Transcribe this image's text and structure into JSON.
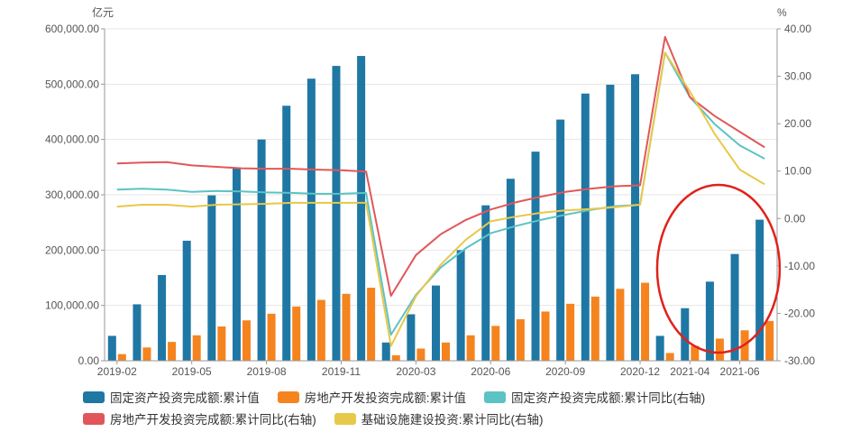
{
  "chart_data": {
    "type": "bar+line",
    "left_axis": {
      "unit": "亿元",
      "min": 0,
      "max": 600000,
      "ticks": [
        "0.00",
        "100,000.00",
        "200,000.00",
        "300,000.00",
        "400,000.00",
        "500,000.00",
        "600,000.00"
      ]
    },
    "right_axis": {
      "unit": "%",
      "min": -30,
      "max": 40,
      "ticks": [
        "-30.00",
        "-20.00",
        "-10.00",
        "0.00",
        "10.00",
        "20.00",
        "30.00",
        "40.00"
      ]
    },
    "x_labels": [
      {
        "index": 0,
        "text": "2019-02"
      },
      {
        "index": 3,
        "text": "2019-05"
      },
      {
        "index": 6,
        "text": "2019-08"
      },
      {
        "index": 9,
        "text": "2019-11"
      },
      {
        "index": 12,
        "text": "2020-03"
      },
      {
        "index": 15,
        "text": "2020-06"
      },
      {
        "index": 18,
        "text": "2020-09"
      },
      {
        "index": 21,
        "text": "2020-12"
      },
      {
        "index": 23,
        "text": "2021-04"
      },
      {
        "index": 25,
        "text": "2021-06"
      }
    ],
    "categories": [
      "2019-02",
      "2019-03",
      "2019-04",
      "2019-05",
      "2019-06",
      "2019-07",
      "2019-08",
      "2019-09",
      "2019-10",
      "2019-11",
      "2019-12",
      "2020-02",
      "2020-03",
      "2020-04",
      "2020-05",
      "2020-06",
      "2020-07",
      "2020-08",
      "2020-09",
      "2020-10",
      "2020-11",
      "2020-12",
      "2021-02",
      "2021-03",
      "2021-04",
      "2021-05",
      "2021-06"
    ],
    "bar_series": [
      {
        "name": "固定资产投资完成额:累计值",
        "color": "#1f77a4",
        "values": [
          45000,
          102000,
          155000,
          217000,
          299000,
          349000,
          400000,
          461000,
          510000,
          533000,
          551000,
          33000,
          84000,
          136000,
          200000,
          281000,
          329000,
          378000,
          436000,
          483000,
          499000,
          518000,
          45000,
          95000,
          143000,
          193000,
          255000
        ]
      },
      {
        "name": "房地产开发投资完成额:累计值",
        "color": "#f5841f",
        "values": [
          12000,
          24000,
          34000,
          46000,
          62000,
          73000,
          85000,
          98000,
          110000,
          121000,
          132000,
          10000,
          22000,
          33000,
          46000,
          63000,
          75000,
          89000,
          103000,
          116000,
          130000,
          141000,
          14000,
          27000,
          40000,
          55000,
          72000
        ]
      }
    ],
    "line_series": [
      {
        "name": "固定资产投资完成额:累计同比(右轴)",
        "color": "#5cc3c3",
        "values": [
          6.1,
          6.3,
          6.1,
          5.6,
          5.8,
          5.7,
          5.5,
          5.4,
          5.2,
          5.2,
          5.4,
          -24.5,
          -16.1,
          -10.3,
          -6.3,
          -3.1,
          -1.6,
          -0.3,
          0.8,
          1.8,
          2.6,
          2.9,
          35.0,
          25.6,
          19.9,
          15.4,
          12.6
        ]
      },
      {
        "name": "房地产开发投资完成额:累计同比(右轴)",
        "color": "#e15759",
        "values": [
          11.6,
          11.8,
          11.9,
          11.2,
          10.9,
          10.6,
          10.5,
          10.5,
          10.3,
          10.2,
          9.9,
          -16.3,
          -7.7,
          -3.3,
          -0.3,
          1.9,
          3.4,
          4.6,
          5.6,
          6.3,
          6.8,
          7.0,
          38.3,
          25.6,
          21.6,
          18.3,
          15.0
        ]
      },
      {
        "name": "基础设施建设投资:累计同比(右轴)",
        "color": "#e8c84a",
        "values": [
          2.5,
          2.9,
          2.9,
          2.5,
          2.9,
          3.0,
          3.1,
          3.3,
          3.3,
          3.3,
          3.3,
          -26.9,
          -16.4,
          -9.7,
          -4.5,
          -0.6,
          0.4,
          1.2,
          1.7,
          2.0,
          2.4,
          2.9,
          35.0,
          26.8,
          17.8,
          10.3,
          7.2
        ]
      }
    ],
    "annotation": "red-ellipse-around-2021-bars"
  },
  "legend": {
    "row1": [
      "固定资产投资完成额:累计值",
      "房地产开发投资完成额:累计值",
      "固定资产投资完成额:累计同比(右轴)"
    ],
    "row2": [
      "房地产开发投资完成额:累计同比(右轴)",
      "基础设施建设投资:累计同比(右轴)"
    ],
    "colors1": [
      "#1f77a4",
      "#f5841f",
      "#5cc3c3"
    ],
    "colors2": [
      "#e15759",
      "#e8c84a"
    ]
  },
  "annotation_color": "#e0221b"
}
